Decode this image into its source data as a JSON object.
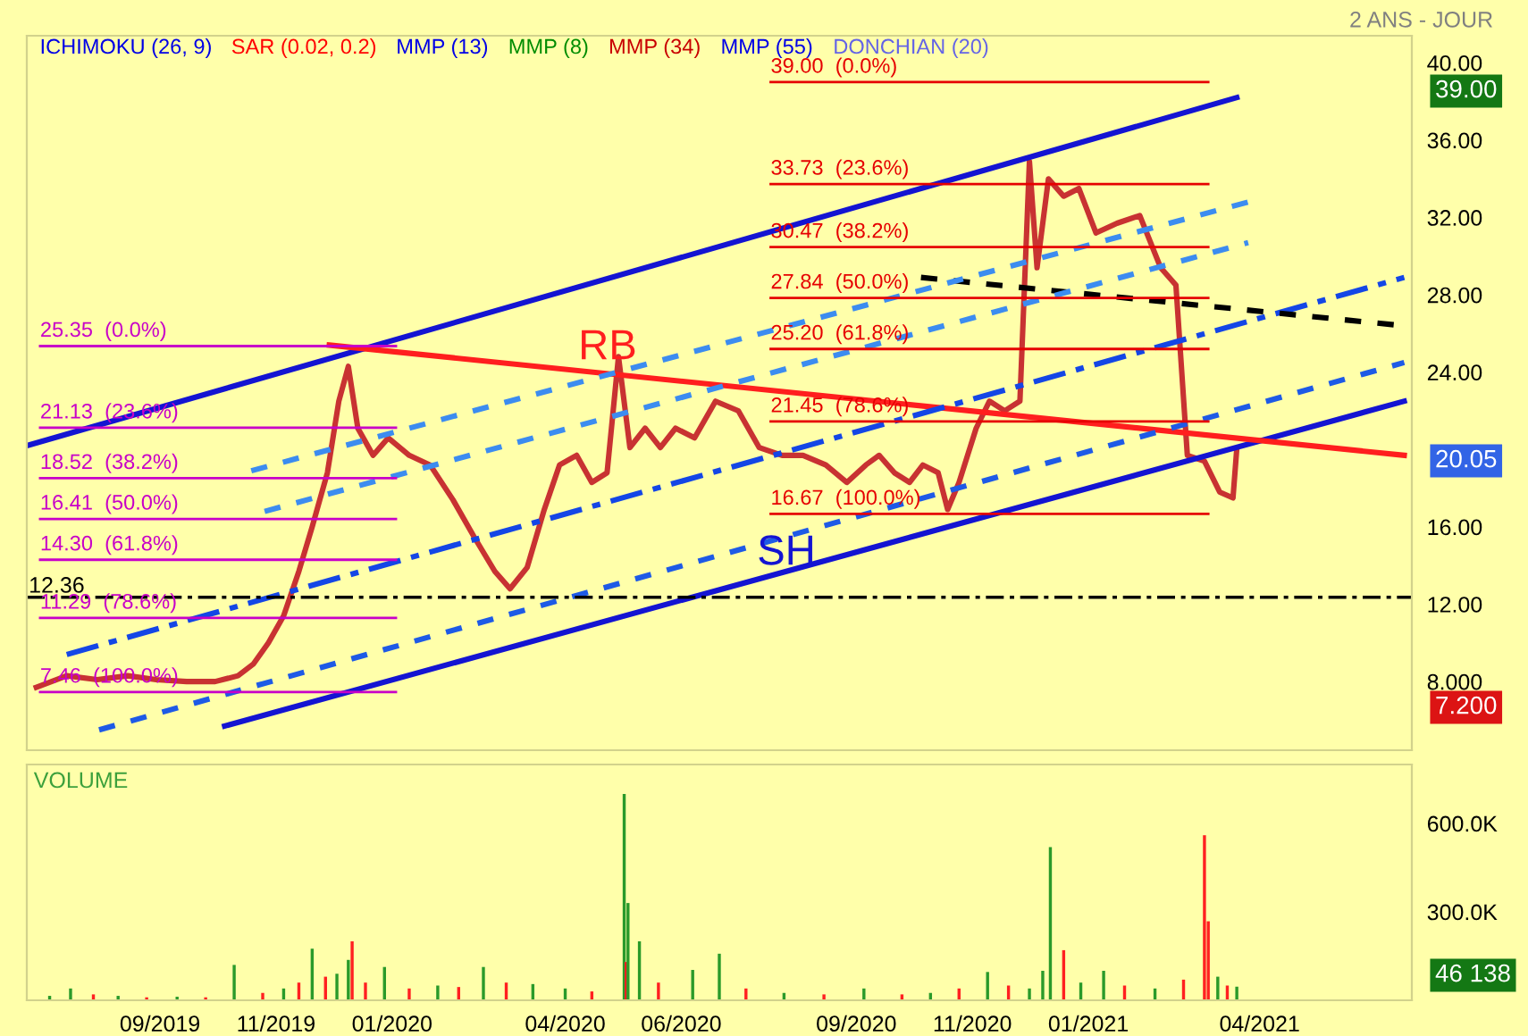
{
  "chart_data": [
    {
      "type": "line",
      "xlim": [
        "2019-06-23",
        "2021-06-20"
      ],
      "ylim": [
        4.45,
        41.4
      ],
      "xticks": [
        {
          "value": "2019-09-01",
          "label": null
        },
        {
          "value": "2019-11-01",
          "label": null
        },
        {
          "value": "2020-01-01",
          "label": null
        },
        {
          "value": "2020-04-01",
          "label": null
        },
        {
          "value": "2020-06-01",
          "label": null
        },
        {
          "value": "2020-09-01",
          "label": null
        },
        {
          "value": "2020-11-01",
          "label": null
        },
        {
          "value": "2021-01-01",
          "label": null
        },
        {
          "value": "2021-04-01",
          "label": null
        }
      ],
      "yticks": [
        {
          "value": 8,
          "label": "8.000"
        },
        {
          "value": 12,
          "label": "12.00"
        },
        {
          "value": 16,
          "label": "16.00"
        },
        {
          "value": 24,
          "label": "24.00"
        },
        {
          "value": 28,
          "label": "28.00"
        },
        {
          "value": 32,
          "label": "32.00"
        },
        {
          "value": 36,
          "label": "36.00"
        },
        {
          "value": 40,
          "label": "40.00"
        }
      ],
      "tick_labels": "y",
      "grid": false,
      "legend": false,
      "ref_lines": [
        {
          "axis": "y",
          "value": 12.36,
          "label": "12.36",
          "color": "#000000",
          "line_style": "dashed"
        }
      ],
      "annotations": [
        "2 ANS - JOUR",
        "ICHIMOKU (26, 9)",
        "SAR (0.02, 0.2)",
        "MMP (13)",
        "MMP (8)",
        "MMP (34)",
        "MMP (55)",
        "DONCHIAN (20)",
        "RB",
        "SH",
        "39.00",
        "20.05",
        "7.200"
      ],
      "series": [
        {
          "color": "#c83232",
          "line_style": "solid",
          "x": [
            "2019-06-28",
            "2019-07-14",
            "2019-07-30",
            "2019-08-15",
            "2019-08-30",
            "2019-09-15",
            "2019-09-30",
            "2019-10-12",
            "2019-10-20",
            "2019-10-28",
            "2019-11-05",
            "2019-11-13",
            "2019-11-20",
            "2019-11-28",
            "2019-12-04",
            "2019-12-09",
            "2019-12-14",
            "2019-12-22",
            "2019-12-30",
            "2020-01-10",
            "2020-01-21",
            "2020-02-02",
            "2020-02-13",
            "2020-02-24",
            "2020-03-03",
            "2020-03-12",
            "2020-03-21",
            "2020-03-29",
            "2020-04-07",
            "2020-04-15",
            "2020-04-23",
            "2020-04-29",
            "2020-05-05",
            "2020-05-13",
            "2020-05-21",
            "2020-05-29",
            "2020-06-08",
            "2020-06-19",
            "2020-07-01",
            "2020-07-12",
            "2020-07-24",
            "2020-08-04",
            "2020-08-16",
            "2020-08-27",
            "2020-09-06",
            "2020-09-13",
            "2020-09-21",
            "2020-09-29",
            "2020-10-06",
            "2020-10-14",
            "2020-10-19",
            "2020-10-25",
            "2020-11-03",
            "2020-11-10",
            "2020-11-18",
            "2020-11-26",
            "2020-12-01",
            "2020-12-05",
            "2020-12-11",
            "2020-12-19",
            "2020-12-27",
            "2021-01-05",
            "2021-01-16",
            "2021-01-28",
            "2021-02-08",
            "2021-02-16",
            "2021-02-22",
            "2021-03-03",
            "2021-03-11",
            "2021-03-18",
            "2021-03-20"
          ],
          "values": [
            7.7,
            8.3,
            8.1,
            8.3,
            8.1,
            8.0,
            8.0,
            8.3,
            8.9,
            10.0,
            11.4,
            13.7,
            16.0,
            18.8,
            22.5,
            24.3,
            21.1,
            19.7,
            20.6,
            19.7,
            19.2,
            17.4,
            15.5,
            13.7,
            12.8,
            13.9,
            16.9,
            19.2,
            19.7,
            18.3,
            18.8,
            24.8,
            20.1,
            21.1,
            20.1,
            21.1,
            20.6,
            22.5,
            22.0,
            20.1,
            19.7,
            19.7,
            19.2,
            18.3,
            19.2,
            19.7,
            18.8,
            18.3,
            19.2,
            18.8,
            16.9,
            18.3,
            21.1,
            22.5,
            22.0,
            22.5,
            34.9,
            29.4,
            34.0,
            33.1,
            33.5,
            31.2,
            31.7,
            32.1,
            29.4,
            28.5,
            19.7,
            19.4,
            17.8,
            17.5,
            20.05
          ]
        },
        {
          "color": "#1414d2",
          "line_style": "solid",
          "x": [
            "2019-06-23",
            "2021-03-20"
          ],
          "values": [
            20.2,
            38.2
          ]
        },
        {
          "color": "#1414d2",
          "line_style": "solid",
          "x": [
            "2019-10-05",
            "2021-06-16"
          ],
          "values": [
            5.7,
            22.5
          ]
        },
        {
          "color": "#ff1e1e",
          "line_style": "solid",
          "x": [
            "2019-11-29",
            "2021-06-16"
          ],
          "values": [
            25.4,
            19.7
          ]
        },
        {
          "color": "#1446e6",
          "line_style": "dashed",
          "x": [
            "2019-07-14",
            "2021-06-16"
          ],
          "values": [
            9.4,
            28.9
          ]
        },
        {
          "color": "#000000",
          "line_style": "dotted",
          "x": [
            "2020-10-05",
            "2021-06-16"
          ],
          "values": [
            28.9,
            26.4
          ]
        },
        {
          "color": "#3c8cf0",
          "line_style": "dotted",
          "x": [
            "2019-10-19",
            "2021-03-26"
          ],
          "values": [
            18.9,
            32.8
          ]
        },
        {
          "color": "#3c8cf0",
          "line_style": "dotted",
          "x": [
            "2019-10-26",
            "2021-03-26"
          ],
          "values": [
            16.8,
            30.7
          ]
        },
        {
          "color": "#1e5ae6",
          "line_style": "dotted",
          "x": [
            "2019-07-31",
            "2021-06-16"
          ],
          "values": [
            5.5,
            24.5
          ]
        },
        {
          "name": "25.35  (0.0%)",
          "color": "#c800c8",
          "x": [
            "2019-06-30",
            "2020-01-03"
          ],
          "values": [
            25.35,
            25.35
          ]
        },
        {
          "name": "21.13  (23.6%)",
          "color": "#c800c8",
          "x": [
            "2019-06-30",
            "2020-01-03"
          ],
          "values": [
            21.13,
            21.13
          ]
        },
        {
          "name": "18.52  (38.2%)",
          "color": "#c800c8",
          "x": [
            "2019-06-30",
            "2020-01-03"
          ],
          "values": [
            18.52,
            18.52
          ]
        },
        {
          "name": "16.41  (50.0%)",
          "color": "#c800c8",
          "x": [
            "2019-06-30",
            "2020-01-03"
          ],
          "values": [
            16.41,
            16.41
          ]
        },
        {
          "name": "14.30  (61.8%)",
          "color": "#c800c8",
          "x": [
            "2019-06-30",
            "2020-01-03"
          ],
          "values": [
            14.3,
            14.3
          ]
        },
        {
          "name": "11.29  (78.6%)",
          "color": "#c800c8",
          "x": [
            "2019-06-30",
            "2020-01-03"
          ],
          "values": [
            11.29,
            11.29
          ]
        },
        {
          "name": "7.46  (100.0%)",
          "color": "#c800c8",
          "x": [
            "2019-06-30",
            "2020-01-03"
          ],
          "values": [
            7.46,
            7.46
          ]
        },
        {
          "name": "39.00  (0.0%)",
          "color": "#e60000",
          "x": [
            "2020-07-18",
            "2021-03-05"
          ],
          "values": [
            39.0,
            39.0
          ]
        },
        {
          "name": "33.73  (23.6%)",
          "color": "#e60000",
          "x": [
            "2020-07-18",
            "2021-03-05"
          ],
          "values": [
            33.73,
            33.73
          ]
        },
        {
          "name": "30.47  (38.2%)",
          "color": "#e60000",
          "x": [
            "2020-07-18",
            "2021-03-05"
          ],
          "values": [
            30.47,
            30.47
          ]
        },
        {
          "name": "27.84  (50.0%)",
          "color": "#e60000",
          "x": [
            "2020-07-18",
            "2021-03-05"
          ],
          "values": [
            27.84,
            27.84
          ]
        },
        {
          "name": "25.20  (61.8%)",
          "color": "#e60000",
          "x": [
            "2020-07-18",
            "2021-03-05"
          ],
          "values": [
            25.2,
            25.2
          ]
        },
        {
          "name": "21.45  (78.6%)",
          "color": "#e60000",
          "x": [
            "2020-07-18",
            "2021-03-05"
          ],
          "values": [
            21.45,
            21.45
          ]
        },
        {
          "name": "16.67  (100.0%)",
          "color": "#e60000",
          "x": [
            "2020-07-18",
            "2021-03-05"
          ],
          "values": [
            16.67,
            16.67
          ]
        }
      ]
    },
    {
      "type": "bar",
      "title": "VOLUME",
      "xlim": [
        "2019-06-23",
        "2021-06-20"
      ],
      "ylim": [
        0,
        800000
      ],
      "xticks": [
        {
          "value": "2019-09-01",
          "label": "09/2019"
        },
        {
          "value": "2019-11-01",
          "label": "11/2019"
        },
        {
          "value": "2020-01-01",
          "label": "01/2020"
        },
        {
          "value": "2020-04-01",
          "label": "04/2020"
        },
        {
          "value": "2020-06-01",
          "label": "06/2020"
        },
        {
          "value": "2020-09-01",
          "label": "09/2020"
        },
        {
          "value": "2020-11-01",
          "label": "11/2020"
        },
        {
          "value": "2021-01-01",
          "label": "01/2021"
        },
        {
          "value": "2021-04-01",
          "label": "04/2021"
        }
      ],
      "yticks": [
        {
          "value": 300000,
          "label": "300.0K"
        },
        {
          "value": 600000,
          "label": "600.0K"
        }
      ],
      "grid": false,
      "legend": false,
      "annotations": [
        "46 138"
      ],
      "x": [
        "2019-07-05",
        "2019-07-16",
        "2019-07-28",
        "2019-08-10",
        "2019-08-25",
        "2019-09-10",
        "2019-09-25",
        "2019-10-10",
        "2019-10-25",
        "2019-11-05",
        "2019-11-13",
        "2019-11-20",
        "2019-11-27",
        "2019-12-03",
        "2019-12-09",
        "2019-12-11",
        "2019-12-18",
        "2019-12-28",
        "2020-01-10",
        "2020-01-25",
        "2020-02-05",
        "2020-02-18",
        "2020-03-01",
        "2020-03-15",
        "2020-04-01",
        "2020-04-15",
        "2020-05-02",
        "2020-05-03",
        "2020-05-04",
        "2020-05-10",
        "2020-05-20",
        "2020-06-07",
        "2020-06-21",
        "2020-07-05",
        "2020-07-25",
        "2020-08-15",
        "2020-09-05",
        "2020-09-25",
        "2020-10-10",
        "2020-10-25",
        "2020-11-09",
        "2020-11-20",
        "2020-12-01",
        "2020-12-08",
        "2020-12-12",
        "2020-12-19",
        "2020-12-28",
        "2021-01-09",
        "2021-01-20",
        "2021-02-05",
        "2021-02-20",
        "2021-03-03",
        "2021-03-05",
        "2021-03-10",
        "2021-03-15",
        "2021-03-20"
      ],
      "values": [
        15000,
        40000,
        20000,
        15000,
        10000,
        12000,
        10000,
        120000,
        25000,
        40000,
        60000,
        175000,
        80000,
        90000,
        137000,
        200000,
        60000,
        113000,
        40000,
        50000,
        45000,
        113000,
        60000,
        55000,
        40000,
        30000,
        700000,
        130000,
        330000,
        200000,
        60000,
        103000,
        158000,
        40000,
        25000,
        20000,
        40000,
        20000,
        25000,
        40000,
        96000,
        50000,
        40000,
        100000,
        520000,
        170000,
        60000,
        100000,
        50000,
        40000,
        70000,
        560000,
        268000,
        80000,
        50000,
        46138
      ],
      "colors": [
        "#2a9a2a",
        "#2a9a2a",
        "#ff2020",
        "#2a9a2a",
        "#ff2020",
        "#2a9a2a",
        "#ff2020",
        "#2a9a2a",
        "#ff2020",
        "#2a9a2a",
        "#ff2020",
        "#2a9a2a",
        "#ff2020",
        "#2a9a2a",
        "#2a9a2a",
        "#ff2020",
        "#ff2020",
        "#2a9a2a",
        "#ff2020",
        "#2a9a2a",
        "#ff2020",
        "#2a9a2a",
        "#ff2020",
        "#2a9a2a",
        "#2a9a2a",
        "#ff2020",
        "#2a9a2a",
        "#ff2020",
        "#2a9a2a",
        "#2a9a2a",
        "#ff2020",
        "#2a9a2a",
        "#2a9a2a",
        "#ff2020",
        "#2a9a2a",
        "#ff2020",
        "#2a9a2a",
        "#ff2020",
        "#2a9a2a",
        "#ff2020",
        "#2a9a2a",
        "#ff2020",
        "#2a9a2a",
        "#2a9a2a",
        "#2a9a2a",
        "#ff2020",
        "#2a9a2a",
        "#2a9a2a",
        "#ff2020",
        "#2a9a2a",
        "#ff2020",
        "#ff2020",
        "#ff2020",
        "#2a9a2a",
        "#ff2020",
        "#2a9a2a"
      ]
    }
  ]
}
